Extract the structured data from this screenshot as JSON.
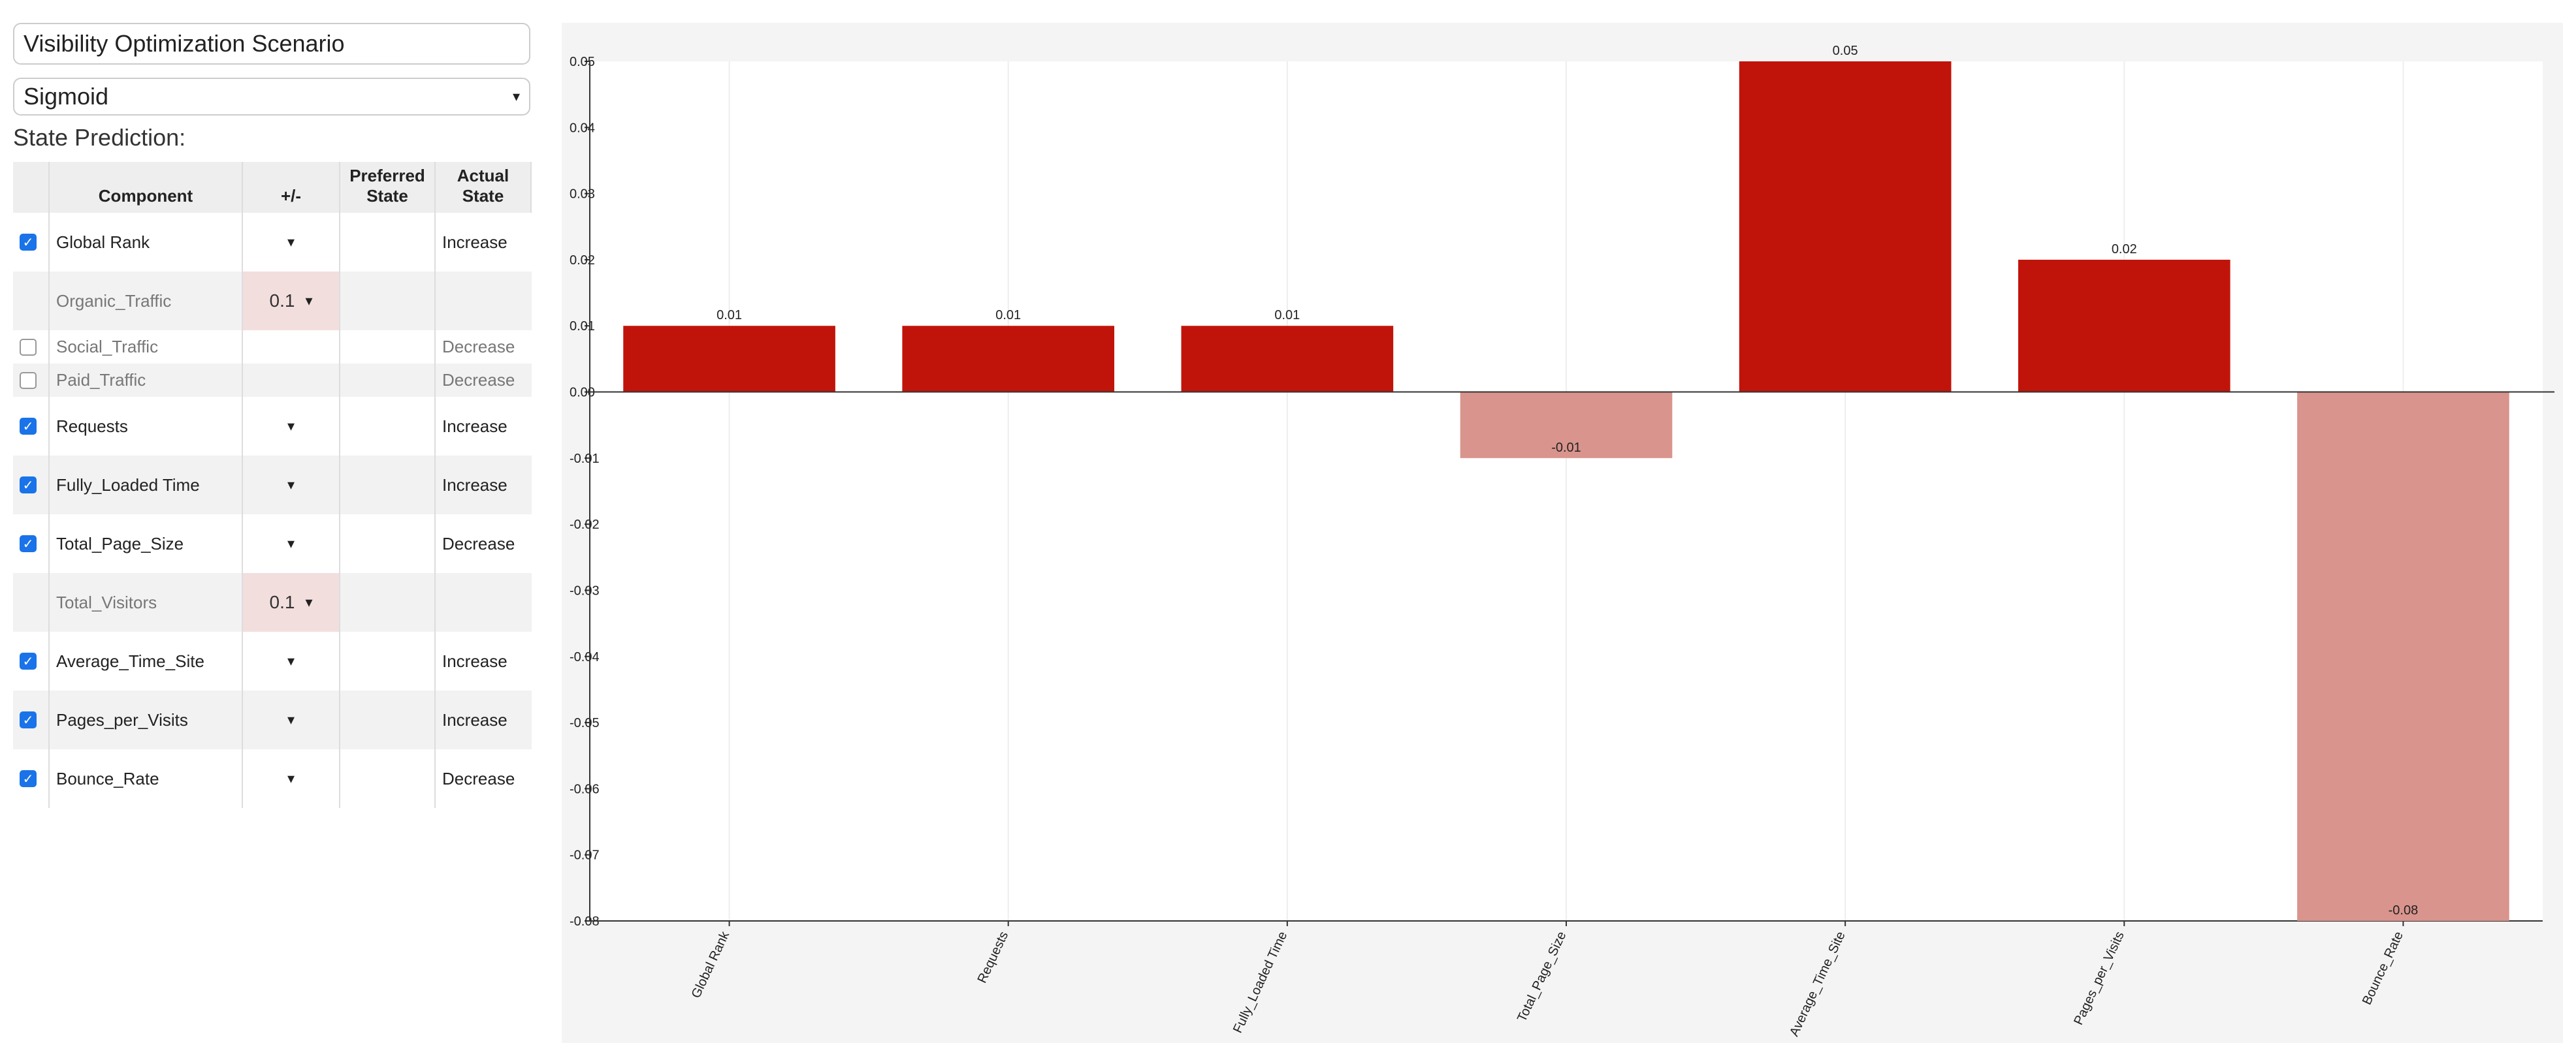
{
  "scenario": "Visibility Optimization Scenario",
  "function": "Sigmoid",
  "state_label": "State Prediction:",
  "table": {
    "columns": [
      "Component",
      "+/-",
      "Preferred State",
      "Actual State"
    ],
    "rows": [
      {
        "checked": true,
        "component": "Global Rank",
        "dropdown": true,
        "actual": "Increase"
      },
      {
        "component": "Organic_Traffic",
        "step": 0.1,
        "dropdown": true
      },
      {
        "checked": false,
        "component": "Social_Traffic",
        "actual": "Decrease"
      },
      {
        "checked": false,
        "component": "Paid_Traffic",
        "actual": "Decrease"
      },
      {
        "checked": true,
        "component": "Requests",
        "dropdown": true,
        "actual": "Increase"
      },
      {
        "checked": true,
        "component": "Fully_Loaded Time",
        "dropdown": true,
        "actual": "Increase"
      },
      {
        "checked": true,
        "component": "Total_Page_Size",
        "dropdown": true,
        "actual": "Decrease"
      },
      {
        "component": "Total_Visitors",
        "step": 0.1,
        "dropdown": true
      },
      {
        "checked": true,
        "component": "Average_Time_Site",
        "dropdown": true,
        "actual": "Increase"
      },
      {
        "checked": true,
        "component": "Pages_per_Visits",
        "dropdown": true,
        "actual": "Increase"
      },
      {
        "checked": true,
        "component": "Bounce_Rate",
        "dropdown": true,
        "actual": "Decrease"
      }
    ]
  },
  "chart_data": {
    "type": "bar",
    "categories": [
      "Global Rank",
      "Requests",
      "Fully_Loaded Time",
      "Total_Page_Size",
      "Average_Time_Site",
      "Pages_per_Visits",
      "Bounce_Rate"
    ],
    "values": [
      0.01,
      0.01,
      0.01,
      -0.01,
      0.05,
      0.02,
      -0.08
    ],
    "positive_color": "#c0140a",
    "negative_color": "#d9948d",
    "ylim": [
      -0.08,
      0.05
    ],
    "yticks": [
      0.05,
      0.04,
      0.03,
      0.02,
      0.01,
      {
        "value": 0,
        "label": "0.00"
      },
      -0.01,
      -0.02,
      -0.03,
      -0.04,
      -0.05,
      -0.06,
      -0.07,
      -0.08
    ],
    "grid": true
  }
}
